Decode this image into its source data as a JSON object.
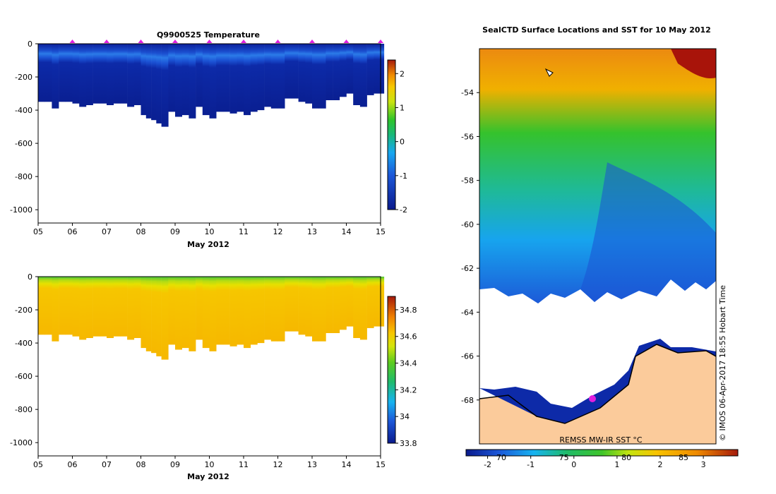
{
  "colors": {
    "cold": "#0a1a8c",
    "mid": "#1e5bd6",
    "land": "#fbcb9b",
    "marker": "#e020e0"
  },
  "chart_data": [
    {
      "type": "heatmap",
      "title": "Q9900525  Temperature",
      "xlabel": "May 2012",
      "xticks": [
        "05",
        "06",
        "07",
        "08",
        "09",
        "10",
        "11",
        "12",
        "13",
        "14",
        "15"
      ],
      "xlim": [
        5,
        15
      ],
      "ylim": [
        -1080,
        0
      ],
      "yticks": [
        0,
        -200,
        -400,
        -600,
        -800,
        -1000
      ],
      "colorbar": {
        "min": -2,
        "max": 2.4,
        "ticks": [
          -2,
          -1,
          0,
          1,
          2
        ]
      },
      "profile_times": [
        5.0,
        5.2,
        5.4,
        5.6,
        5.8,
        6.0,
        6.2,
        6.4,
        6.6,
        6.8,
        7.0,
        7.2,
        7.4,
        7.6,
        7.8,
        8.0,
        8.15,
        8.3,
        8.45,
        8.6,
        8.8,
        9.0,
        9.2,
        9.4,
        9.6,
        9.8,
        10.0,
        10.2,
        10.4,
        10.6,
        10.8,
        11.0,
        11.2,
        11.4,
        11.6,
        11.8,
        12.0,
        12.2,
        12.4,
        12.6,
        12.8,
        13.0,
        13.2,
        13.4,
        13.6,
        13.8,
        14.0,
        14.2,
        14.4,
        14.6,
        14.8
      ],
      "profile_depths": [
        -350,
        -350,
        -390,
        -350,
        -350,
        -360,
        -380,
        -370,
        -360,
        -360,
        -370,
        -360,
        -360,
        -380,
        -370,
        -430,
        -450,
        -460,
        -480,
        -500,
        -410,
        -440,
        -430,
        -450,
        -380,
        -430,
        -450,
        -410,
        -410,
        -420,
        -410,
        -430,
        -410,
        -400,
        -380,
        -390,
        -390,
        -330,
        -330,
        -350,
        -360,
        -390,
        -390,
        -340,
        -340,
        -320,
        -300,
        -370,
        -380,
        -310,
        -300
      ],
      "surface_markers": [
        6,
        7,
        8,
        9,
        10,
        11,
        12,
        13,
        14,
        15
      ]
    },
    {
      "type": "heatmap",
      "title": "",
      "xlabel": "May 2012",
      "xticks": [
        "05",
        "06",
        "07",
        "08",
        "09",
        "10",
        "11",
        "12",
        "13",
        "14",
        "15"
      ],
      "xlim": [
        5,
        15
      ],
      "ylim": [
        -1080,
        0
      ],
      "yticks": [
        0,
        -200,
        -400,
        -600,
        -800,
        -1000
      ],
      "colorbar": {
        "min": 33.8,
        "max": 34.9,
        "ticks": [
          33.8,
          34,
          34.2,
          34.4,
          34.6,
          34.8
        ]
      }
    },
    {
      "type": "heatmap",
      "title": "SealCTD Surface Locations and SST for 10 May 2012",
      "yticks": [
        -54,
        -56,
        -58,
        -60,
        -62,
        -64,
        -66,
        -68
      ],
      "ylim": [
        -70,
        -52
      ],
      "colorbar_label": "REMSS MW-IR SST °C",
      "colorbar": {
        "min": -2.5,
        "max": 3.8,
        "ticks": [
          -2,
          -1,
          0,
          1,
          2,
          3
        ]
      },
      "longitude_ticks": [
        "70",
        "75",
        "80",
        "85"
      ],
      "side_label": "© IMOS 06-Apr-2017 18:55 Hobart Time"
    }
  ]
}
